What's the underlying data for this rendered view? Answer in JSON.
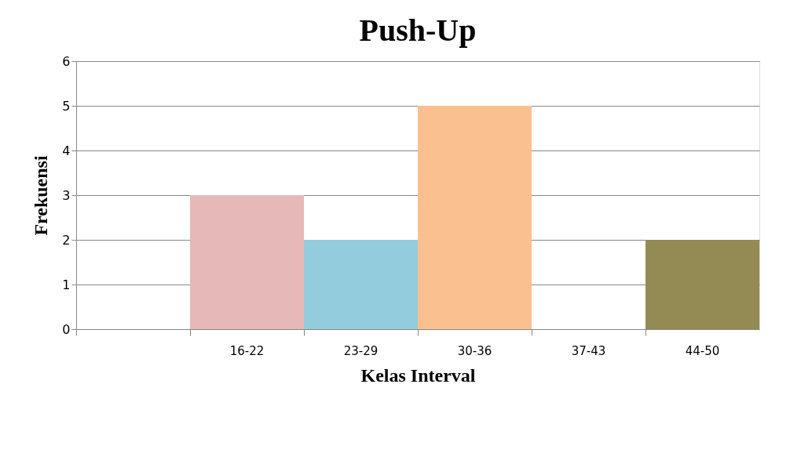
{
  "chart_data": {
    "type": "bar",
    "title": "Push-Up",
    "xlabel": "Kelas Interval",
    "ylabel": "Frekuensi",
    "categories": [
      null,
      "16-22",
      "23-29",
      "30-36",
      "37-43",
      "44-50"
    ],
    "values": [
      null,
      3,
      2,
      5,
      0,
      2
    ],
    "colors": [
      null,
      "#e6b9b8",
      "#93cddd",
      "#fac090",
      "#ffffff",
      "#948a54"
    ],
    "ylim": [
      0,
      6
    ],
    "yticks": [
      0,
      1,
      2,
      3,
      4,
      5,
      6
    ],
    "grid": "y",
    "legend": false
  }
}
